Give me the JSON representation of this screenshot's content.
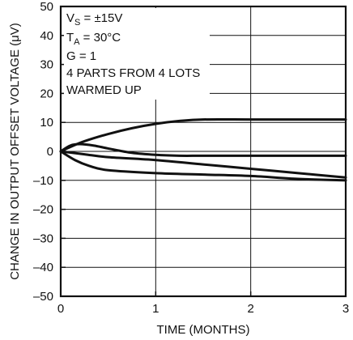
{
  "chart_data": {
    "type": "line",
    "xlabel": "TIME (MONTHS)",
    "ylabel": "CHANGE IN OUTPUT OFFSET VOLTAGE (μV)",
    "xlim": [
      0,
      3
    ],
    "ylim": [
      -50,
      50
    ],
    "x_ticks": [
      "0",
      "1",
      "2",
      "3"
    ],
    "y_ticks": [
      "50",
      "40",
      "30",
      "20",
      "10",
      "0",
      "–10",
      "–20",
      "–30",
      "–40",
      "–50"
    ],
    "grid": true,
    "annotations": {
      "vs_main": "V",
      "vs_sub": "S",
      "vs_rest": " = ±15V",
      "ta_main": "T",
      "ta_sub": "A",
      "ta_rest": " = 30°C",
      "gain": "G = 1",
      "parts": "4 PARTS FROM 4 LOTS",
      "warm": "WARMED UP"
    },
    "series": [
      {
        "points": [
          [
            0,
            0
          ],
          [
            0.1,
            1.5
          ],
          [
            0.25,
            3.5
          ],
          [
            0.5,
            6
          ],
          [
            0.75,
            8
          ],
          [
            1.0,
            9.5
          ],
          [
            1.25,
            10.5
          ],
          [
            1.5,
            11
          ],
          [
            2.0,
            11
          ],
          [
            2.5,
            11
          ],
          [
            3.0,
            11
          ]
        ]
      },
      {
        "points": [
          [
            0,
            0
          ],
          [
            0.1,
            2
          ],
          [
            0.2,
            2.5
          ],
          [
            0.35,
            2
          ],
          [
            0.5,
            1
          ],
          [
            0.75,
            -0.5
          ],
          [
            1.0,
            -1.2
          ],
          [
            1.25,
            -1.5
          ],
          [
            1.5,
            -1.5
          ],
          [
            2.0,
            -1.5
          ],
          [
            2.5,
            -1.5
          ],
          [
            3.0,
            -1.5
          ]
        ]
      },
      {
        "points": [
          [
            0,
            0
          ],
          [
            0.25,
            -1
          ],
          [
            0.5,
            -2
          ],
          [
            1.0,
            -3
          ],
          [
            1.5,
            -4.5
          ],
          [
            2.0,
            -6
          ],
          [
            2.5,
            -7.5
          ],
          [
            3.0,
            -9
          ]
        ]
      },
      {
        "points": [
          [
            0,
            0
          ],
          [
            0.15,
            -3
          ],
          [
            0.3,
            -5
          ],
          [
            0.5,
            -6.5
          ],
          [
            1.0,
            -7.5
          ],
          [
            1.5,
            -8
          ],
          [
            2.0,
            -8.5
          ],
          [
            2.5,
            -9.5
          ],
          [
            3.0,
            -10
          ]
        ]
      }
    ]
  }
}
